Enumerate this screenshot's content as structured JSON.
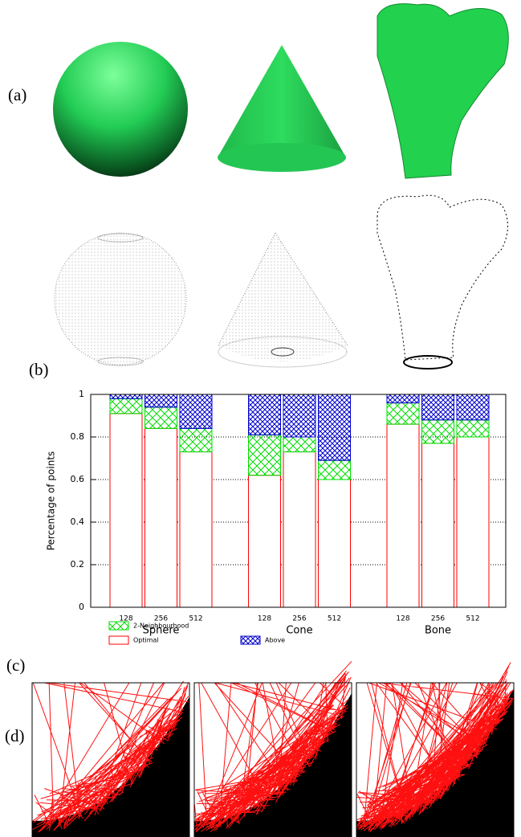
{
  "panel_labels": [
    "(a)",
    "(b)",
    "(c)",
    "(d)"
  ],
  "chart_data": {
    "type": "stacked_bar",
    "ylabel": "Percentage of points",
    "groups": [
      "Sphere",
      "Cone",
      "Bone"
    ],
    "categories": [
      "128",
      "256",
      "512",
      "128",
      "256",
      "512",
      "128",
      "256",
      "512"
    ],
    "series": [
      {
        "name": "Optimal",
        "color": "#ff0000",
        "values": [
          0.91,
          0.84,
          0.73,
          0.62,
          0.73,
          0.6,
          0.86,
          0.77,
          0.8
        ]
      },
      {
        "name": "2-Neighbourhood",
        "color": "#00dd00",
        "values": [
          0.07,
          0.1,
          0.11,
          0.19,
          0.07,
          0.09,
          0.1,
          0.11,
          0.08
        ]
      },
      {
        "name": "Above",
        "color": "#0000cc",
        "values": [
          0.02,
          0.06,
          0.16,
          0.19,
          0.2,
          0.31,
          0.04,
          0.12,
          0.12
        ]
      }
    ],
    "ylim": [
      0,
      1
    ],
    "yticks": [
      0,
      0.2,
      0.4,
      0.6,
      0.8,
      1
    ],
    "grid": true
  }
}
